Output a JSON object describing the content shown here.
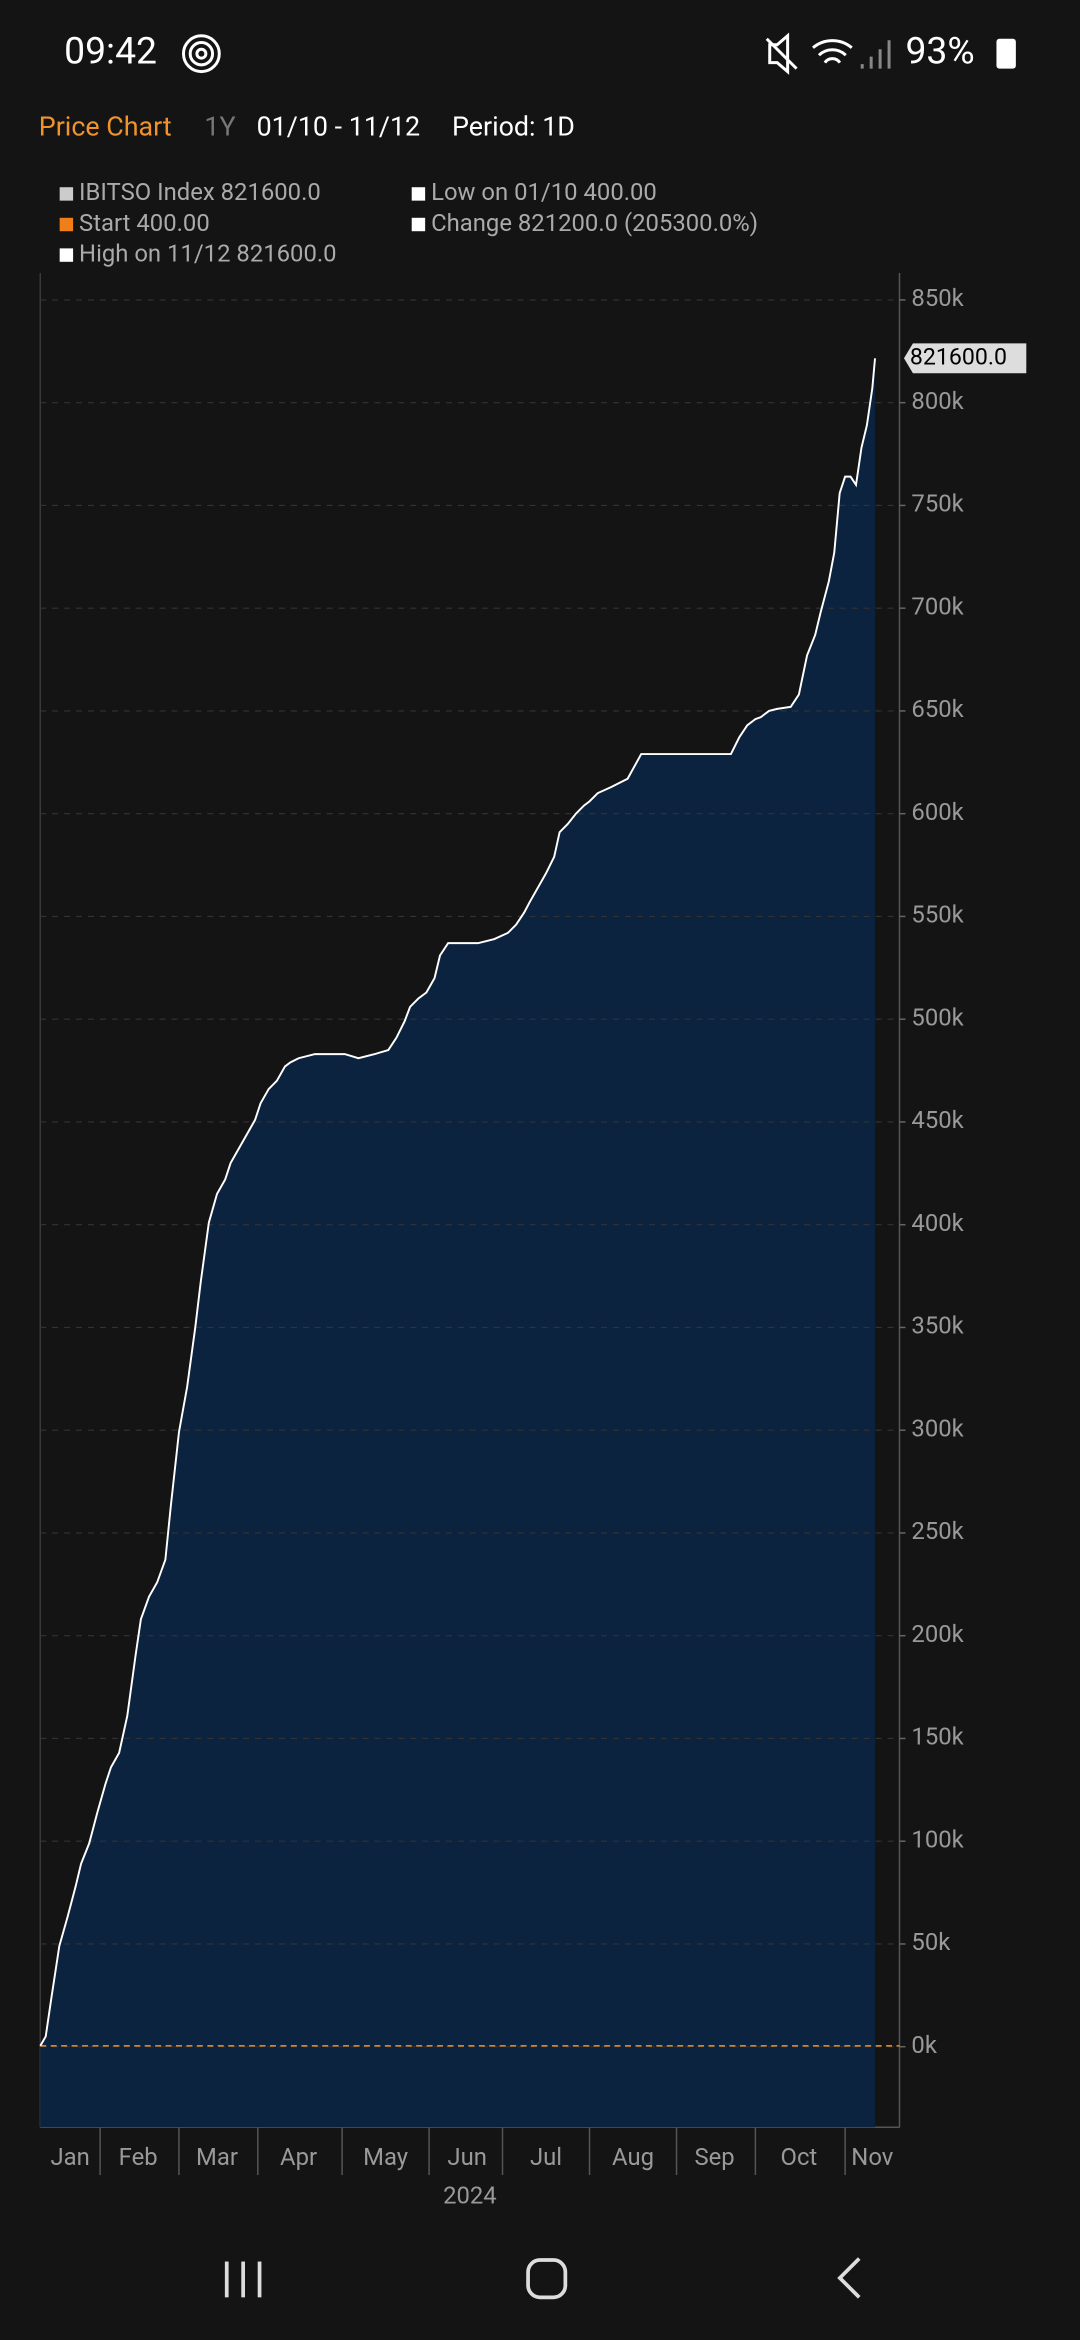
{
  "status_bar": {
    "time": "09:42",
    "battery": "93%"
  },
  "toolbar": {
    "title": "Price Chart",
    "range": "1Y",
    "dates": "01/10 - 11/12",
    "period": "Period: 1D"
  },
  "chart_data": {
    "type": "area",
    "legend": [
      {
        "label": "IBITSO Index 821600.0",
        "color": "#cccccc"
      },
      {
        "label": "Low on 01/10 400.00",
        "color": "#ffffff"
      },
      {
        "label": "Start 400.00",
        "color": "#f07f1a"
      },
      {
        "label": "Change 821200.0 (205300.0%)",
        "color": "#ffffff"
      },
      {
        "label": "High on 11/12 821600.0",
        "color": "#ffffff"
      }
    ],
    "x": [
      10,
      12,
      14,
      17,
      20,
      23,
      25,
      28,
      31,
      34,
      36,
      39,
      42,
      45,
      47,
      50,
      53,
      56,
      58,
      61,
      64,
      67,
      69,
      72,
      75,
      78,
      80,
      83,
      86,
      89,
      91,
      94,
      97,
      100,
      102,
      105,
      111,
      116,
      122,
      127,
      133,
      138,
      141,
      144,
      146,
      149,
      152,
      155,
      157,
      160,
      166,
      171,
      177,
      182,
      185,
      188,
      190,
      193,
      196,
      199,
      201,
      204,
      207,
      210,
      212,
      215,
      220,
      226,
      231,
      237,
      242,
      248,
      253,
      259,
      264,
      267,
      270,
      273,
      275,
      278,
      281,
      286,
      289,
      292,
      295,
      297,
      300,
      302,
      304,
      306,
      308,
      310,
      312,
      314,
      316,
      317
    ],
    "series": [
      {
        "color": "#ffffff",
        "fill": "#0c2340",
        "values": [
          400,
          5000,
          23000,
          49000,
          63000,
          78000,
          89000,
          99000,
          114000,
          128000,
          136000,
          143000,
          161000,
          190000,
          208000,
          219000,
          226000,
          237000,
          263000,
          299000,
          321000,
          350000,
          372000,
          401000,
          415000,
          422000,
          430000,
          437000,
          444000,
          451000,
          459000,
          466000,
          470000,
          477000,
          479000,
          481000,
          483000,
          483000,
          483000,
          481000,
          483000,
          485000,
          491000,
          499000,
          506000,
          510000,
          513000,
          520000,
          531000,
          537000,
          537000,
          537000,
          539000,
          542000,
          546000,
          552000,
          557000,
          564000,
          571000,
          579000,
          591000,
          595000,
          600000,
          604000,
          606000,
          610000,
          613000,
          617000,
          629000,
          629000,
          629000,
          629000,
          629000,
          629000,
          629000,
          637000,
          643000,
          646000,
          647000,
          650000,
          651000,
          652000,
          658000,
          677000,
          687000,
          698000,
          713000,
          727000,
          756000,
          764000,
          764000,
          760000,
          778000,
          789000,
          807000,
          821600
        ],
        "last_label": "821600.0"
      }
    ],
    "start_value": 400,
    "start_color": "#f0932b",
    "xlim": [
      10,
      326
    ],
    "xticks": [
      {
        "value": 21,
        "label": "Jan"
      },
      {
        "value": 46,
        "label": "Feb"
      },
      {
        "value": 75,
        "label": "Mar"
      },
      {
        "value": 105,
        "label": "Apr"
      },
      {
        "value": 137,
        "label": "May"
      },
      {
        "value": 167,
        "label": "Jun"
      },
      {
        "value": 196,
        "label": "Jul"
      },
      {
        "value": 228,
        "label": "Aug"
      },
      {
        "value": 258,
        "label": "Sep"
      },
      {
        "value": 289,
        "label": "Oct"
      },
      {
        "value": 316,
        "label": "Nov"
      }
    ],
    "x_separators": [
      32,
      61,
      90,
      121,
      153,
      180,
      212,
      244,
      273,
      306
    ],
    "x_label": "2024",
    "ylim": [
      -39200,
      863100
    ],
    "yticks": [
      {
        "value": 0,
        "label": "0k"
      },
      {
        "value": 50000,
        "label": "50k"
      },
      {
        "value": 100000,
        "label": "100k"
      },
      {
        "value": 150000,
        "label": "150k"
      },
      {
        "value": 200000,
        "label": "200k"
      },
      {
        "value": 250000,
        "label": "250k"
      },
      {
        "value": 300000,
        "label": "300k"
      },
      {
        "value": 350000,
        "label": "350k"
      },
      {
        "value": 400000,
        "label": "400k"
      },
      {
        "value": 450000,
        "label": "450k"
      },
      {
        "value": 500000,
        "label": "500k"
      },
      {
        "value": 550000,
        "label": "550k"
      },
      {
        "value": 600000,
        "label": "600k"
      },
      {
        "value": 650000,
        "label": "650k"
      },
      {
        "value": 700000,
        "label": "700k"
      },
      {
        "value": 750000,
        "label": "750k"
      },
      {
        "value": 800000,
        "label": "800k"
      },
      {
        "value": 850000,
        "label": "850k"
      }
    ],
    "grid": true
  }
}
